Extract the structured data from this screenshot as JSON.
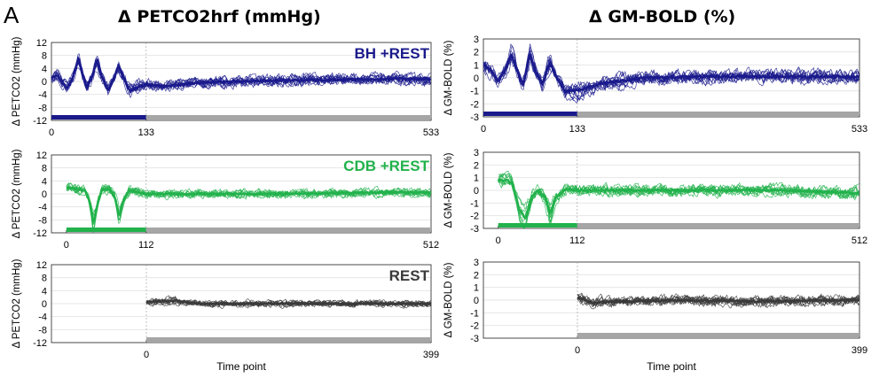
{
  "figure": {
    "panel_letter": "A",
    "left_title": "Δ PETCO2hrf (mmHg)",
    "right_title": "Δ GM-BOLD (%)"
  },
  "colors": {
    "bh": "#1a1a8c",
    "cdb": "#22b24c",
    "rest": "#3a3a3a",
    "restbar": "#a6a6a6",
    "grid": "#e6e6e6"
  },
  "chart_data": [
    {
      "id": "petco2-bh",
      "type": "line",
      "ylabel": "Δ PETCO2 (mmHg)",
      "label": "BH +REST",
      "color": "#1a1a8c",
      "ylim": [
        -12,
        12
      ],
      "yticks": [
        12,
        8,
        4,
        0,
        -4,
        -8,
        -12
      ],
      "xlim": [
        0,
        533
      ],
      "xtick_labels": [
        "0",
        "133",
        "533"
      ],
      "xticks": [
        0,
        133,
        533
      ],
      "task_range": [
        0,
        133
      ],
      "rest_range": [
        133,
        533
      ],
      "data_start": 0,
      "n_traces": 10,
      "mean_profile": [
        [
          0,
          1
        ],
        [
          8,
          2
        ],
        [
          14,
          0
        ],
        [
          22,
          -2
        ],
        [
          30,
          1
        ],
        [
          38,
          7.5
        ],
        [
          44,
          2
        ],
        [
          50,
          -2
        ],
        [
          58,
          2
        ],
        [
          64,
          7
        ],
        [
          70,
          2
        ],
        [
          80,
          -3
        ],
        [
          88,
          1
        ],
        [
          94,
          5
        ],
        [
          100,
          2
        ],
        [
          110,
          -3
        ],
        [
          120,
          -2
        ],
        [
          133,
          -1
        ],
        [
          160,
          -1.5
        ],
        [
          200,
          -0.5
        ],
        [
          260,
          0
        ],
        [
          320,
          0.3
        ],
        [
          400,
          0.5
        ],
        [
          470,
          0.8
        ],
        [
          533,
          0.8
        ]
      ],
      "variability": 2.0
    },
    {
      "id": "bold-bh",
      "type": "line",
      "ylabel": "Δ GM-BOLD (%)",
      "label": "",
      "color": "#1a1a8c",
      "ylim": [
        -3,
        3
      ],
      "yticks": [
        3,
        2,
        1,
        0,
        -1,
        -2,
        -3
      ],
      "xlim": [
        0,
        533
      ],
      "xtick_labels": [
        "0",
        "133",
        "533"
      ],
      "xticks": [
        0,
        133,
        533
      ],
      "task_range": [
        0,
        133
      ],
      "rest_range": [
        133,
        533
      ],
      "data_start": 0,
      "n_traces": 10,
      "mean_profile": [
        [
          0,
          1
        ],
        [
          12,
          0.5
        ],
        [
          20,
          -0.3
        ],
        [
          30,
          0.5
        ],
        [
          40,
          1.8
        ],
        [
          48,
          0.5
        ],
        [
          56,
          -0.5
        ],
        [
          66,
          1.8
        ],
        [
          74,
          0.5
        ],
        [
          84,
          -0.5
        ],
        [
          94,
          1.2
        ],
        [
          104,
          0
        ],
        [
          115,
          -1
        ],
        [
          133,
          -1
        ],
        [
          170,
          -0.4
        ],
        [
          230,
          0
        ],
        [
          300,
          0.1
        ],
        [
          400,
          0.1
        ],
        [
          533,
          0.1
        ]
      ],
      "variability": 0.6
    },
    {
      "id": "petco2-cdb",
      "type": "line",
      "ylabel": "Δ PETCO2 (mmHg)",
      "label": "CDB +REST",
      "color": "#22b24c",
      "ylim": [
        -12,
        12
      ],
      "yticks": [
        12,
        8,
        4,
        0,
        -4,
        -8,
        -12
      ],
      "xlim": [
        -21,
        512
      ],
      "xtick_labels": [
        "0",
        "112",
        "512"
      ],
      "xticks": [
        0,
        112,
        512
      ],
      "task_range": [
        0,
        112
      ],
      "rest_range": [
        112,
        512
      ],
      "data_start": 0,
      "n_traces": 10,
      "mean_profile": [
        [
          0,
          2
        ],
        [
          14,
          1.5
        ],
        [
          26,
          1
        ],
        [
          32,
          -2
        ],
        [
          38,
          -9
        ],
        [
          44,
          -3
        ],
        [
          50,
          1.5
        ],
        [
          60,
          1.5
        ],
        [
          68,
          -1
        ],
        [
          74,
          -7
        ],
        [
          80,
          -2
        ],
        [
          88,
          1
        ],
        [
          100,
          0.5
        ],
        [
          112,
          0
        ],
        [
          200,
          0
        ],
        [
          300,
          0
        ],
        [
          400,
          0.3
        ],
        [
          512,
          0.5
        ]
      ],
      "variability": 1.5
    },
    {
      "id": "bold-cdb",
      "type": "line",
      "ylabel": "Δ GM-BOLD (%)",
      "label": "",
      "color": "#22b24c",
      "ylim": [
        -3,
        3
      ],
      "yticks": [
        3,
        2,
        1,
        0,
        -1,
        -2,
        -3
      ],
      "xlim": [
        -21,
        512
      ],
      "xtick_labels": [
        "0",
        "112",
        "512"
      ],
      "xticks": [
        0,
        112,
        512
      ],
      "task_range": [
        0,
        112
      ],
      "rest_range": [
        112,
        512
      ],
      "data_start": 0,
      "n_traces": 10,
      "mean_profile": [
        [
          0,
          0.8
        ],
        [
          12,
          0.8
        ],
        [
          20,
          0.5
        ],
        [
          30,
          -1.5
        ],
        [
          38,
          -2.2
        ],
        [
          48,
          -0.5
        ],
        [
          56,
          0
        ],
        [
          66,
          -0.5
        ],
        [
          74,
          -1.8
        ],
        [
          82,
          -0.5
        ],
        [
          96,
          0.1
        ],
        [
          112,
          0
        ],
        [
          200,
          0
        ],
        [
          300,
          0
        ],
        [
          400,
          0
        ],
        [
          512,
          -0.2
        ]
      ],
      "variability": 0.5
    },
    {
      "id": "petco2-rest",
      "type": "line",
      "ylabel": "Δ PETCO2 (mmHg)",
      "label": "REST",
      "color": "#3a3a3a",
      "ylim": [
        -12,
        12
      ],
      "yticks": [
        12,
        8,
        4,
        0,
        -4,
        -8,
        -12
      ],
      "xlim": [
        -133,
        399
      ],
      "xtick_labels": [
        "0",
        "399"
      ],
      "xticks": [
        0,
        399
      ],
      "task_range": null,
      "rest_range": [
        0,
        399
      ],
      "data_start": 0,
      "n_traces": 10,
      "mean_profile": [
        [
          0,
          0.5
        ],
        [
          40,
          1
        ],
        [
          70,
          0
        ],
        [
          120,
          0
        ],
        [
          200,
          0
        ],
        [
          300,
          0
        ],
        [
          399,
          0
        ]
      ],
      "variability": 1.2
    },
    {
      "id": "bold-rest",
      "type": "line",
      "ylabel": "Δ GM-BOLD (%)",
      "label": "",
      "color": "#3a3a3a",
      "ylim": [
        -3,
        3
      ],
      "yticks": [
        3,
        2,
        1,
        0,
        -1,
        -2,
        -3
      ],
      "xlim": [
        -133,
        399
      ],
      "xtick_labels": [
        "0",
        "399"
      ],
      "xticks": [
        0,
        399
      ],
      "task_range": null,
      "rest_range": [
        0,
        399
      ],
      "data_start": 0,
      "n_traces": 10,
      "mean_profile": [
        [
          0,
          0.2
        ],
        [
          20,
          -0.2
        ],
        [
          60,
          -0.1
        ],
        [
          150,
          0
        ],
        [
          250,
          -0.1
        ],
        [
          399,
          0
        ]
      ],
      "variability": 0.45
    }
  ],
  "xlabel": "Time point"
}
